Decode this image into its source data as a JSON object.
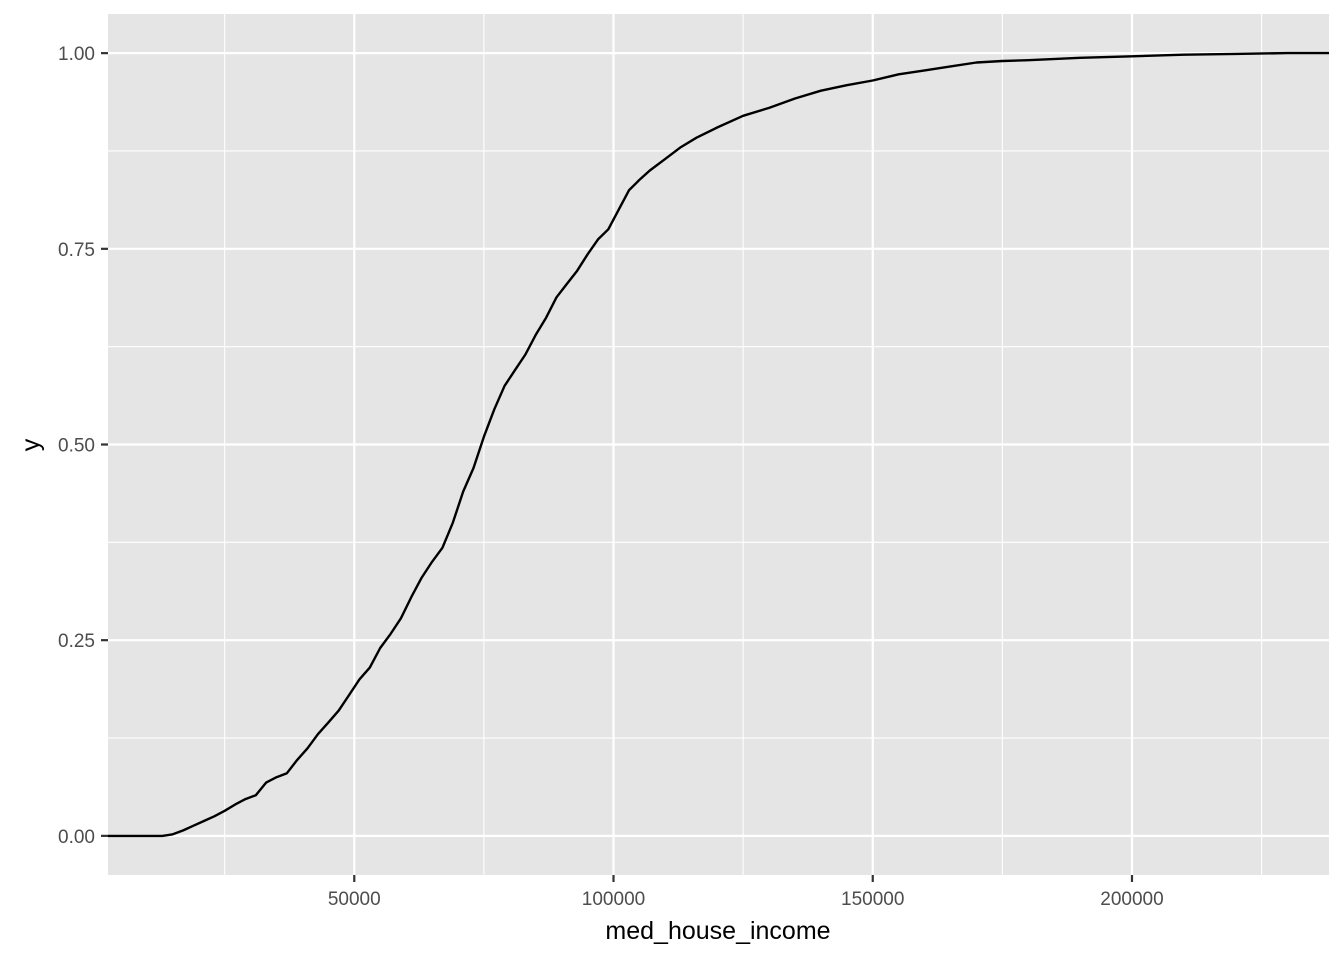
{
  "chart_data": {
    "type": "line",
    "title": "",
    "xlabel": "med_house_income",
    "ylabel": "y",
    "xlim": [
      2500,
      238000
    ],
    "ylim": [
      -0.05,
      1.05
    ],
    "x_major_ticks": [
      50000,
      100000,
      150000,
      200000
    ],
    "x_minor_ticks": [
      25000,
      75000,
      125000,
      175000,
      225000
    ],
    "y_major_ticks": [
      0.0,
      0.25,
      0.5,
      0.75,
      1.0
    ],
    "y_minor_ticks": [
      0.125,
      0.375,
      0.625,
      0.875
    ],
    "x_tick_labels": [
      "50000",
      "100000",
      "150000",
      "200000"
    ],
    "y_tick_labels": [
      "0.00",
      "0.25",
      "0.50",
      "0.75",
      "1.00"
    ],
    "grid": true,
    "legend": "none",
    "colors": {
      "panel": "#e5e5e5",
      "grid": "#ffffff",
      "line": "#000000",
      "tick_text": "#4d4d4d"
    },
    "series": [
      {
        "x": [
          2500,
          13000,
          15000,
          17000,
          19000,
          21000,
          23000,
          25000,
          27000,
          29000,
          31000,
          33000,
          35000,
          37000,
          39000,
          41000,
          43000,
          45000,
          47000,
          49000,
          51000,
          53000,
          55000,
          57000,
          59000,
          61000,
          63000,
          65000,
          67000,
          69000,
          71000,
          73000,
          75000,
          77000,
          79000,
          81000,
          83000,
          85000,
          87000,
          89000,
          91000,
          93000,
          95000,
          97000,
          99000,
          101000,
          103000,
          105000,
          107000,
          110000,
          113000,
          116000,
          120000,
          125000,
          130000,
          135000,
          140000,
          145000,
          150000,
          155000,
          160000,
          165000,
          170000,
          175000,
          180000,
          190000,
          200000,
          210000,
          220000,
          230000,
          238000
        ],
        "y": [
          0.0,
          0.0,
          0.002,
          0.007,
          0.013,
          0.019,
          0.025,
          0.032,
          0.04,
          0.047,
          0.052,
          0.068,
          0.075,
          0.08,
          0.097,
          0.112,
          0.13,
          0.145,
          0.16,
          0.18,
          0.2,
          0.215,
          0.24,
          0.258,
          0.278,
          0.305,
          0.33,
          0.35,
          0.368,
          0.4,
          0.44,
          0.47,
          0.51,
          0.545,
          0.575,
          0.595,
          0.615,
          0.64,
          0.662,
          0.688,
          0.705,
          0.722,
          0.743,
          0.762,
          0.775,
          0.8,
          0.825,
          0.838,
          0.85,
          0.865,
          0.88,
          0.892,
          0.905,
          0.92,
          0.93,
          0.942,
          0.952,
          0.959,
          0.965,
          0.973,
          0.978,
          0.983,
          0.988,
          0.99,
          0.991,
          0.994,
          0.996,
          0.998,
          0.999,
          1.0,
          1.0
        ]
      }
    ]
  }
}
